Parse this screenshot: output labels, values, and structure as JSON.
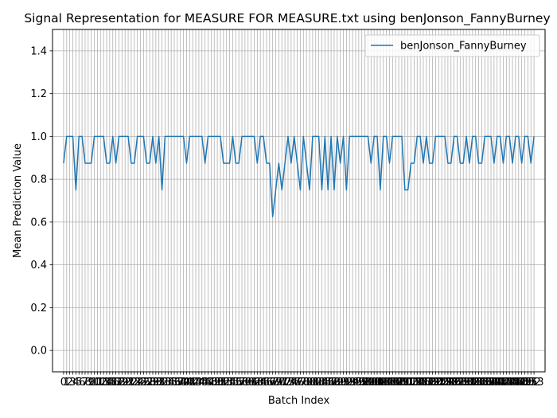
{
  "chart_data": {
    "type": "line",
    "title": "Signal Representation for MEASURE FOR MEASURE.txt using benJonson_FannyBurney",
    "xlabel": "Batch Index",
    "ylabel": "Mean Prediction Value",
    "xlim": [
      -3.6,
      156.6
    ],
    "ylim": [
      -0.1,
      1.5
    ],
    "yticks": [
      0.0,
      0.2,
      0.4,
      0.6,
      0.8,
      1.0,
      1.2,
      1.4
    ],
    "ytick_labels": [
      "0.0",
      "0.2",
      "0.4",
      "0.6",
      "0.8",
      "1.0",
      "1.2",
      "1.4"
    ],
    "grid": true,
    "legend_position": "top-right",
    "line_color": "#1f77b4",
    "series": [
      {
        "name": "benJonson_FannyBurney",
        "values": [
          0.875,
          1.0,
          1.0,
          1.0,
          0.75,
          1.0,
          1.0,
          0.875,
          0.875,
          0.875,
          1.0,
          1.0,
          1.0,
          1.0,
          0.875,
          0.875,
          1.0,
          0.875,
          1.0,
          1.0,
          1.0,
          1.0,
          0.875,
          0.875,
          1.0,
          1.0,
          1.0,
          0.875,
          0.875,
          1.0,
          0.875,
          1.0,
          0.75,
          1.0,
          1.0,
          1.0,
          1.0,
          1.0,
          1.0,
          1.0,
          0.875,
          1.0,
          1.0,
          1.0,
          1.0,
          1.0,
          0.875,
          1.0,
          1.0,
          1.0,
          1.0,
          1.0,
          0.875,
          0.875,
          0.875,
          1.0,
          0.875,
          0.875,
          1.0,
          1.0,
          1.0,
          1.0,
          1.0,
          0.875,
          1.0,
          1.0,
          0.875,
          0.875,
          0.625,
          0.75,
          0.875,
          0.75,
          0.875,
          1.0,
          0.875,
          1.0,
          0.875,
          0.75,
          1.0,
          0.875,
          0.75,
          1.0,
          1.0,
          1.0,
          0.75,
          1.0,
          0.75,
          1.0,
          0.75,
          1.0,
          0.875,
          1.0,
          0.75,
          1.0,
          1.0,
          1.0,
          1.0,
          1.0,
          1.0,
          1.0,
          0.875,
          1.0,
          1.0,
          0.75,
          1.0,
          1.0,
          0.875,
          1.0,
          1.0,
          1.0,
          1.0,
          0.75,
          0.75,
          0.875,
          0.875,
          1.0,
          1.0,
          0.875,
          1.0,
          0.875,
          0.875,
          1.0,
          1.0,
          1.0,
          1.0,
          0.875,
          0.875,
          1.0,
          1.0,
          0.875,
          0.875,
          1.0,
          0.875,
          1.0,
          1.0,
          0.875,
          0.875,
          1.0,
          1.0,
          1.0,
          0.875,
          1.0,
          1.0,
          0.875,
          1.0,
          1.0,
          0.875,
          1.0,
          1.0,
          0.875,
          1.0,
          1.0,
          0.875,
          1.0
        ]
      }
    ]
  }
}
